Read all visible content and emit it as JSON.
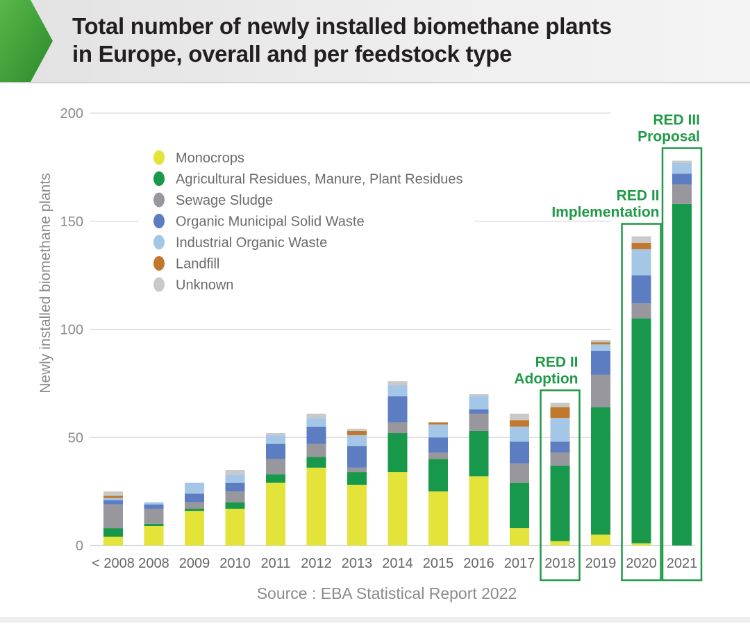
{
  "header": {
    "title_line1": "Total number of newly installed biomethane plants",
    "title_line2": "in Europe, overall and per feedstock type",
    "accent_color": "#3a9a3a"
  },
  "chart_data": {
    "type": "bar",
    "stacked": true,
    "ylabel": "Newly installed biomethane plants",
    "ylim": [
      0,
      200
    ],
    "yticks": [
      0,
      50,
      100,
      150,
      200
    ],
    "grid": true,
    "legend_position": "top-left",
    "source": "Source : EBA Statistical Report 2022",
    "categories": [
      "< 2008",
      "2008",
      "2009",
      "2010",
      "2011",
      "2012",
      "2013",
      "2014",
      "2015",
      "2016",
      "2017",
      "2018",
      "2019",
      "2020",
      "2021"
    ],
    "series": [
      {
        "name": "Monocrops",
        "color": "#e3e33a",
        "values": [
          4,
          9,
          16,
          17,
          29,
          36,
          28,
          34,
          25,
          32,
          8,
          2,
          5,
          1,
          0
        ]
      },
      {
        "name": "Agricultural Residues, Manure, Plant Residues",
        "color": "#17984a",
        "values": [
          4,
          1,
          1,
          3,
          4,
          5,
          6,
          18,
          15,
          21,
          21,
          35,
          59,
          104,
          158
        ]
      },
      {
        "name": "Sewage Sludge",
        "color": "#97979d",
        "values": [
          11,
          7,
          3,
          5,
          7,
          6,
          2,
          5,
          3,
          8,
          9,
          6,
          15,
          7,
          9
        ]
      },
      {
        "name": "Organic Municipal Solid Waste",
        "color": "#5c7dc1",
        "values": [
          2,
          2,
          4,
          4,
          7,
          8,
          10,
          12,
          7,
          2,
          10,
          5,
          11,
          13,
          5
        ]
      },
      {
        "name": "Industrial Organic Waste",
        "color": "#a4c7e8",
        "values": [
          1,
          1,
          5,
          4,
          4,
          4,
          5,
          5,
          6,
          6,
          7,
          11,
          3,
          12,
          5
        ]
      },
      {
        "name": "Landfill",
        "color": "#c0772e",
        "values": [
          1,
          0,
          0,
          0,
          0,
          0,
          2,
          0,
          1,
          0,
          3,
          5,
          1,
          3,
          0
        ]
      },
      {
        "name": "Unknown",
        "color": "#c9c9c9",
        "values": [
          2,
          0,
          0,
          2,
          1,
          2,
          1,
          2,
          0,
          1,
          3,
          2,
          1,
          3,
          1
        ]
      }
    ],
    "annotations": [
      {
        "category": "2018",
        "lines": [
          "RED II",
          "Adoption"
        ]
      },
      {
        "category": "2020",
        "lines": [
          "RED II",
          "Implementation"
        ]
      },
      {
        "category": "2021",
        "lines": [
          "RED III",
          "Proposal"
        ]
      }
    ]
  }
}
